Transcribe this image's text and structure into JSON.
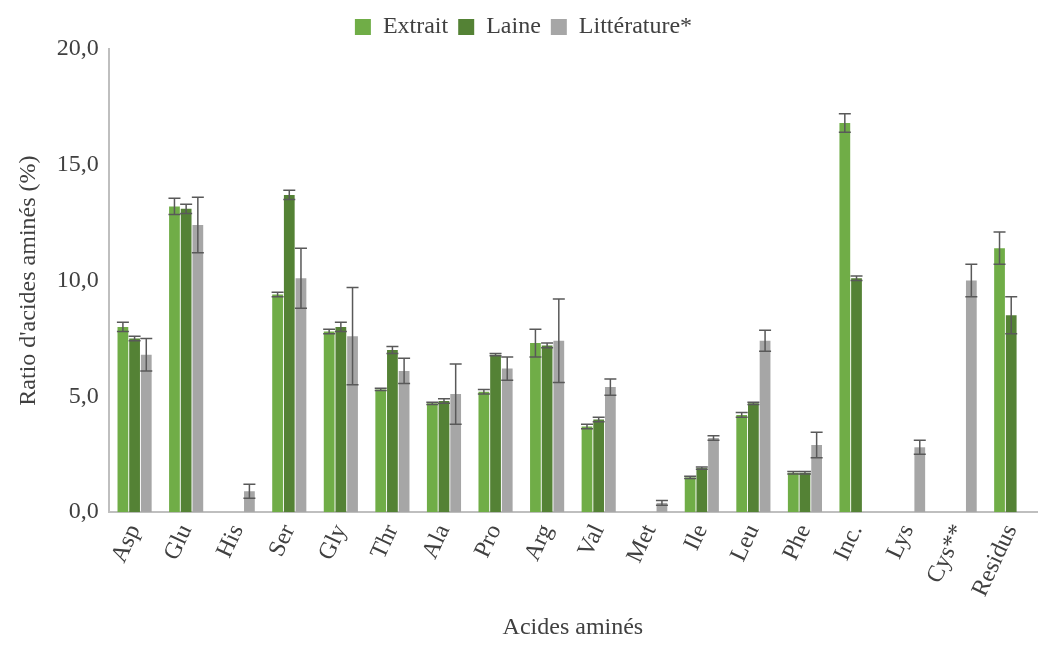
{
  "chart_data": {
    "type": "bar",
    "xlabel": "Acides aminés",
    "ylabel": "Ratio d'acides aminés (%)",
    "categories": [
      "Asp",
      "Glu",
      "His",
      "Ser",
      "Gly",
      "Thr",
      "Ala",
      "Pro",
      "Arg",
      "Val",
      "Met",
      "Ile",
      "Leu",
      "Phe",
      "Inc.",
      "Lys",
      "Cys**",
      "Residus"
    ],
    "ylim": [
      0,
      20
    ],
    "yticks": [
      {
        "value": 0,
        "label": "0,0"
      },
      {
        "value": 5,
        "label": "5,0"
      },
      {
        "value": 10,
        "label": "10,0"
      },
      {
        "value": 15,
        "label": "15,0"
      },
      {
        "value": 20,
        "label": "20,0"
      }
    ],
    "grid": false,
    "legend": "top",
    "series": [
      {
        "name": "Extrait",
        "color": "#70ad47",
        "values": [
          8.0,
          13.2,
          null,
          9.4,
          7.8,
          5.3,
          4.7,
          5.2,
          7.3,
          3.7,
          null,
          1.5,
          4.2,
          1.7,
          16.8,
          null,
          null,
          11.4
        ],
        "errors": [
          0.2,
          0.35,
          null,
          0.1,
          0.1,
          0.05,
          0.05,
          0.1,
          0.6,
          0.1,
          null,
          0.05,
          0.1,
          0.05,
          0.4,
          null,
          null,
          0.7
        ]
      },
      {
        "name": "Laine",
        "color": "#548235",
        "values": [
          7.5,
          13.1,
          null,
          13.7,
          8.0,
          7.0,
          4.8,
          6.8,
          7.2,
          4.0,
          null,
          1.9,
          4.7,
          1.7,
          10.1,
          null,
          null,
          8.5
        ],
        "errors": [
          0.1,
          0.2,
          null,
          0.2,
          0.2,
          0.15,
          0.1,
          0.05,
          0.1,
          0.1,
          null,
          0.05,
          0.05,
          0.05,
          0.1,
          null,
          null,
          0.8
        ]
      },
      {
        "name": "Littérature*",
        "color": "#a6a6a6",
        "values": [
          6.8,
          12.4,
          0.9,
          10.1,
          7.6,
          6.1,
          5.1,
          6.2,
          7.4,
          5.4,
          0.4,
          3.2,
          7.4,
          2.9,
          null,
          2.8,
          10.0,
          null
        ],
        "errors": [
          0.7,
          1.2,
          0.3,
          1.3,
          2.1,
          0.55,
          1.3,
          0.5,
          1.8,
          0.35,
          0.1,
          0.1,
          0.45,
          0.55,
          null,
          0.3,
          0.7,
          null
        ]
      }
    ]
  }
}
